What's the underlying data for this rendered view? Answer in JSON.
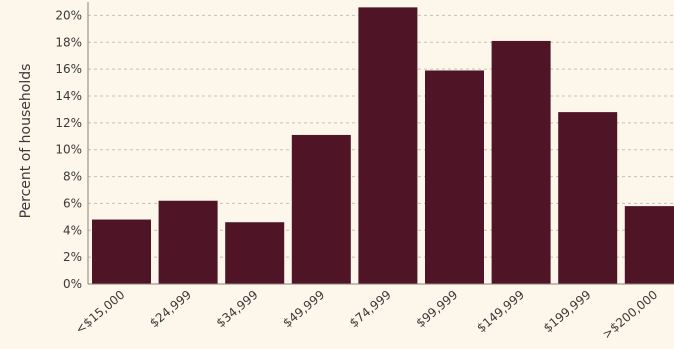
{
  "chart_data": {
    "type": "bar",
    "title": "",
    "xlabel": "",
    "ylabel": "Percent of households",
    "categories": [
      "<$15,000",
      "$24,999",
      "$34,999",
      "$49,999",
      "$74,999",
      "$99,999",
      "$149,999",
      "$199,999",
      ">$200,000"
    ],
    "values": [
      4.8,
      6.2,
      4.6,
      11.1,
      20.6,
      15.9,
      18.1,
      12.8,
      5.8
    ],
    "ylim": [
      0,
      21
    ],
    "yticks": [
      0,
      2,
      4,
      6,
      8,
      10,
      12,
      14,
      16,
      18,
      20
    ],
    "ytick_labels": [
      "0%",
      "2%",
      "4%",
      "6%",
      "8%",
      "10%",
      "12%",
      "14%",
      "16%",
      "18%",
      "20%"
    ],
    "grid": true,
    "bar_color": "#4f1527",
    "background_color": "#fdf6ea"
  }
}
